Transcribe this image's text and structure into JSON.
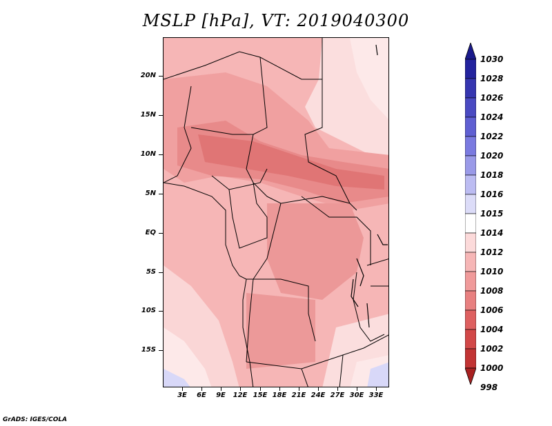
{
  "title": "MSLP [hPa], VT: 2019040300",
  "credit": "GrADS: IGES/COLA",
  "lat_labels": [
    "20N",
    "15N",
    "10N",
    "5N",
    "EQ",
    "5S",
    "10S",
    "15S"
  ],
  "lon_labels": [
    "3E",
    "6E",
    "9E",
    "12E",
    "15E",
    "18E",
    "21E",
    "24E",
    "27E",
    "30E",
    "33E"
  ],
  "colorbar": {
    "labels": [
      "1030",
      "1028",
      "1026",
      "1024",
      "1022",
      "1020",
      "1018",
      "1016",
      "1015",
      "1014",
      "1012",
      "1010",
      "1008",
      "1006",
      "1004",
      "1002",
      "1000",
      "998"
    ],
    "colors": [
      "#1a1a8c",
      "#23239e",
      "#3636b0",
      "#4a4ac2",
      "#5f5fd2",
      "#7a7ae0",
      "#9a9ae8",
      "#bcbcf2",
      "#dcdcf8",
      "#ffffff",
      "#fcdada",
      "#f6b6b6",
      "#f09a9a",
      "#e88080",
      "#de6060",
      "#d24848",
      "#c23434",
      "#a82020"
    ]
  },
  "map": {
    "colors": {
      "lightest": "#fbe3e3",
      "light": "#f7c4c4",
      "mid": "#f0a5a5",
      "deep": "#e88989",
      "deeper": "#e07272",
      "blue": "#d0d0f6"
    }
  }
}
